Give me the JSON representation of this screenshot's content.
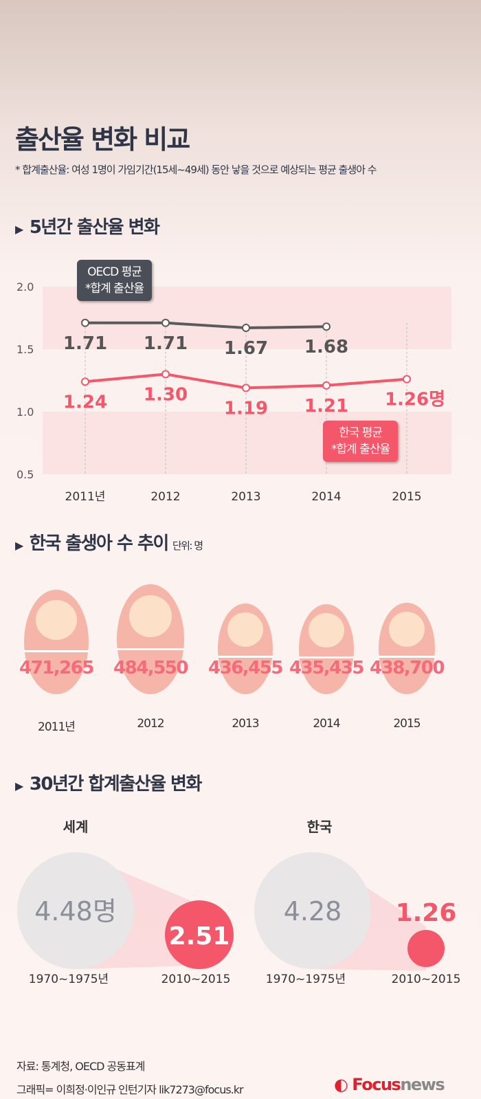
{
  "title": "출산율 변화 비교",
  "note": "* 합계출산율: 여성 1명이 가임기간(15세~49세) 동안 낳을 것으로 예상되는 평균 출생아 수",
  "sections": {
    "s1": "5년간 출산율 변화",
    "s2": "한국 출생아 수 추이",
    "s2_unit": "단위: 명",
    "s3": "30년간 합계출산율 변화"
  },
  "chart_data": [
    {
      "type": "line",
      "categories": [
        "2011년",
        "2012",
        "2013",
        "2014",
        "2015"
      ],
      "ylim": [
        0.5,
        2.0
      ],
      "yticks": [
        "2.0",
        "1.5",
        "1.0",
        "0.5"
      ],
      "series": [
        {
          "name": "OECD 평균 *합계 출산율",
          "values": [
            1.71,
            1.71,
            1.67,
            1.68,
            null
          ],
          "labels": [
            "1.71",
            "1.71",
            "1.67",
            "1.68",
            ""
          ],
          "color": "#5b5b5b"
        },
        {
          "name": "한국 평균 *합계 출산율",
          "values": [
            1.24,
            1.3,
            1.19,
            1.21,
            1.26
          ],
          "labels": [
            "1.24",
            "1.30",
            "1.19",
            "1.21",
            "1.26명"
          ],
          "color": "#f4566a"
        }
      ],
      "bubbles": {
        "oecd": [
          "OECD 평균",
          "*합계 출산율"
        ],
        "korea": [
          "한국 평균",
          "*합계 출산율"
        ]
      }
    },
    {
      "type": "bar",
      "categories": [
        "2011년",
        "2012",
        "2013",
        "2014",
        "2015"
      ],
      "values": [
        471265,
        484550,
        436455,
        435435,
        438700
      ],
      "labels": [
        "471,265",
        "484,550",
        "436,455",
        "435,435",
        "438,700"
      ]
    },
    {
      "type": "bubble",
      "groups": [
        {
          "name": "세계",
          "periods": [
            "1970~1975년",
            "2010~2015"
          ],
          "values": [
            4.48,
            2.51
          ],
          "labels": [
            "4.48명",
            "2.51"
          ]
        },
        {
          "name": "한국",
          "periods": [
            "1970~1975년",
            "2010~2015"
          ],
          "values": [
            4.28,
            1.26
          ],
          "labels": [
            "4.28",
            "1.26"
          ]
        }
      ]
    }
  ],
  "footer": {
    "source": "자료: 통계청, OECD 공동표계",
    "credit": "그래픽= 이희정·이인규 인턴기자 lik7273@focus.kr",
    "logo_a": "Focus",
    "logo_b": "news"
  },
  "colors": {
    "accent": "#f4566a",
    "oecd": "#5b5b5b",
    "bubble_gray": "#e8e6e6"
  }
}
